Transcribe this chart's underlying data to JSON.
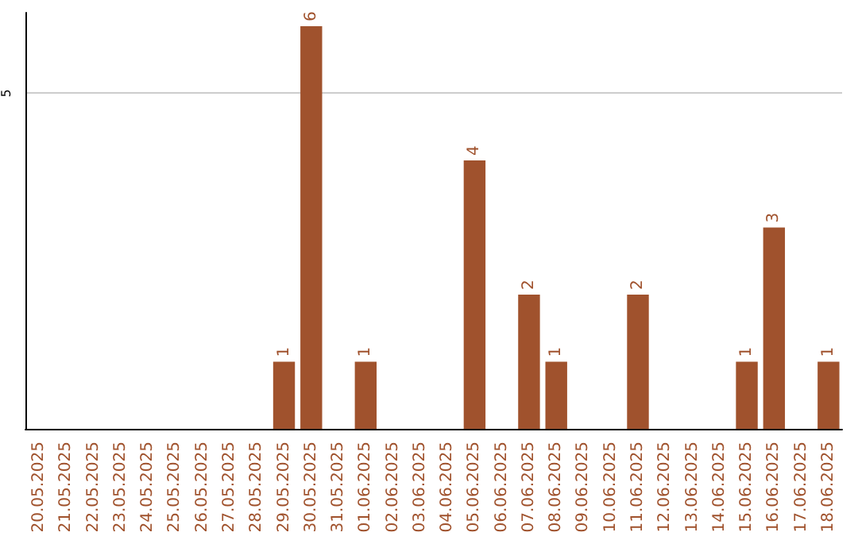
{
  "chart_data": {
    "type": "bar",
    "categories": [
      "20.05.2025",
      "21.05.2025",
      "22.05.2025",
      "23.05.2025",
      "24.05.2025",
      "25.05.2025",
      "26.05.2025",
      "27.05.2025",
      "28.05.2025",
      "29.05.2025",
      "30.05.2025",
      "31.05.2025",
      "01.06.2025",
      "02.06.2025",
      "03.06.2025",
      "04.06.2025",
      "05.06.2025",
      "06.06.2025",
      "07.06.2025",
      "08.06.2025",
      "09.06.2025",
      "10.06.2025",
      "11.06.2025",
      "12.06.2025",
      "13.06.2025",
      "14.06.2025",
      "15.06.2025",
      "16.06.2025",
      "17.06.2025",
      "18.06.2025"
    ],
    "values": [
      0,
      0,
      0,
      0,
      0,
      0,
      0,
      0,
      0,
      1,
      6,
      0,
      1,
      0,
      0,
      0,
      4,
      0,
      2,
      1,
      0,
      0,
      2,
      0,
      0,
      0,
      1,
      3,
      0,
      1
    ],
    "value_labels": [
      null,
      null,
      null,
      null,
      null,
      null,
      null,
      null,
      null,
      "1",
      "6",
      null,
      "1",
      null,
      null,
      null,
      "4",
      null,
      "2",
      "1",
      null,
      null,
      "2",
      null,
      null,
      null,
      "1",
      "3",
      null,
      "1"
    ],
    "color": "#a0522d",
    "ylim": [
      0,
      6.2
    ],
    "yticks": [
      5
    ],
    "grid": "y"
  }
}
